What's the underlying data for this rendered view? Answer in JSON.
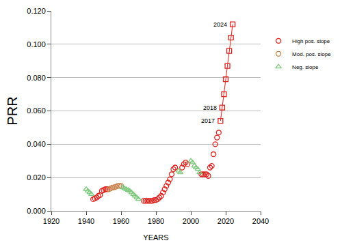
{
  "chart_data": {
    "type": "scatter",
    "x_label": "YEARS",
    "y_label": "PRR",
    "xlim": [
      1920,
      2040
    ],
    "xticks": [
      1920,
      1940,
      1960,
      1980,
      2000,
      2020,
      2040
    ],
    "ylim": [
      0,
      0.12
    ],
    "yticks": [
      {
        "value": 0,
        "label": "0.000"
      },
      {
        "value": 0.02,
        "label": "0.020"
      },
      {
        "value": 0.04,
        "label": "0.040"
      },
      {
        "value": 0.06,
        "label": "0.060"
      },
      {
        "value": 0.08,
        "label": "0.080"
      },
      {
        "value": 0.1,
        "label": "0.100"
      },
      {
        "value": 0.12,
        "label": "0.120"
      }
    ],
    "grid": "y",
    "legend": "upper right",
    "series": [
      {
        "name": "High pos. slope",
        "color": "#e0201b",
        "marker": "circle-open",
        "x": [
          1944,
          1945,
          1946,
          1947,
          1948,
          1949,
          1950,
          1951,
          1952,
          1973,
          1974,
          1975,
          1976,
          1977,
          1978,
          1979,
          1980,
          1981,
          1982,
          1983,
          1984,
          1985,
          1986,
          1987,
          1988,
          1989,
          1990,
          1991,
          1995,
          1996,
          1997,
          1998,
          2006,
          2007,
          2008,
          2009,
          2010,
          2011,
          2012,
          2013,
          2014,
          2015,
          2016
        ],
        "values": [
          0.007,
          0.0075,
          0.008,
          0.009,
          0.0095,
          0.012,
          0.0125,
          0.013,
          0.013,
          0.006,
          0.006,
          0.006,
          0.006,
          0.006,
          0.006,
          0.0065,
          0.0065,
          0.007,
          0.008,
          0.009,
          0.011,
          0.013,
          0.015,
          0.017,
          0.019,
          0.022,
          0.025,
          0.026,
          0.026,
          0.028,
          0.029,
          0.028,
          0.022,
          0.022,
          0.022,
          0.022,
          0.021,
          0.026,
          0.027,
          0.034,
          0.04,
          0.044,
          0.047
        ]
      },
      {
        "name": "Mod. pos. slope",
        "color": "#c9804a",
        "marker": "circle-open",
        "x": [
          1953,
          1954,
          1955,
          1956,
          1957,
          1958,
          1959,
          1960
        ],
        "values": [
          0.013,
          0.0135,
          0.014,
          0.0142,
          0.0145,
          0.015,
          0.015,
          0.015
        ]
      },
      {
        "name": "Neg. slope",
        "color": "#7fc97f",
        "marker": "triangle-up-open",
        "x": [
          1940,
          1941,
          1942,
          1943,
          1961,
          1962,
          1963,
          1964,
          1965,
          1966,
          1967,
          1968,
          1969,
          1970,
          1993,
          1994,
          2000,
          2001,
          2002,
          2003,
          2004,
          2005
        ],
        "values": [
          0.013,
          0.012,
          0.011,
          0.01,
          0.014,
          0.0135,
          0.013,
          0.0125,
          0.012,
          0.011,
          0.01,
          0.009,
          0.008,
          0.007,
          0.024,
          0.023,
          0.03,
          0.029,
          0.027,
          0.026,
          0.025,
          0.023
        ]
      },
      {
        "color": "#e0201b",
        "marker": "square-open",
        "line_style": "solid",
        "x": [
          2017,
          2018,
          2019,
          2020,
          2021,
          2022,
          2023,
          2024
        ],
        "values": [
          0.054,
          0.062,
          0.07,
          0.079,
          0.087,
          0.096,
          0.104,
          0.112
        ]
      }
    ],
    "annotations": [
      {
        "text": "2024",
        "x": 2024,
        "y": 0.112
      },
      {
        "text": "2018",
        "x": 2018,
        "y": 0.062
      },
      {
        "text": "2017",
        "x": 2017,
        "y": 0.054
      }
    ]
  }
}
